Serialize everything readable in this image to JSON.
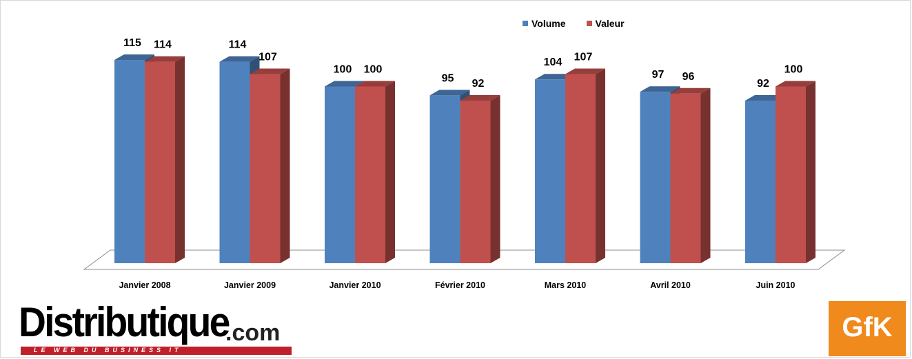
{
  "chart_data": {
    "type": "bar",
    "categories": [
      "Janvier 2008",
      "Janvier 2009",
      "Janvier 2010",
      "Février 2010",
      "Mars 2010",
      "Avril 2010",
      "Juin 2010"
    ],
    "series": [
      {
        "name": "Volume",
        "values": [
          115,
          114,
          100,
          95,
          104,
          97,
          92
        ],
        "color": "#4f81bd"
      },
      {
        "name": "Valeur",
        "values": [
          114,
          107,
          100,
          92,
          107,
          96,
          100
        ],
        "color": "#c0504d"
      }
    ],
    "legend_position": "top-right",
    "style": "3d",
    "grid": false
  },
  "legend": {
    "volume_label": "Volume",
    "valeur_label": "Valeur"
  },
  "logos": {
    "distributique_main": "Distributique",
    "distributique_com": ".com",
    "distributique_tagline": "LE WEB DU BUSINESS IT",
    "gfk": "GfK",
    "gfk_color": "#f08a1d",
    "distributique_bar_color": "#c0202a"
  }
}
